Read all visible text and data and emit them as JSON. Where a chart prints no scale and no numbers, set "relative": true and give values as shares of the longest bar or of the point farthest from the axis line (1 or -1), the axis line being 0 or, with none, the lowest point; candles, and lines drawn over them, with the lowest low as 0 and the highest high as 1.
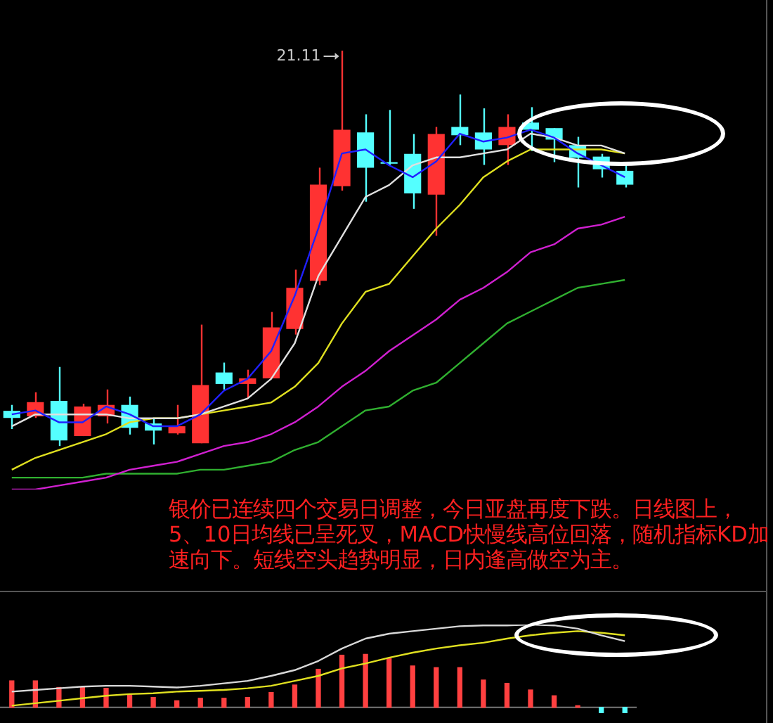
{
  "chart_data": [
    {
      "type": "candlestick",
      "relative": true,
      "categories": [
        null,
        null,
        null,
        null,
        null,
        null,
        null,
        null,
        null,
        null,
        null,
        null,
        null,
        null,
        null,
        null,
        null,
        null,
        null,
        null,
        null,
        null,
        null,
        null,
        null,
        null,
        null
      ],
      "ohlc": [
        [
          0.089,
          0.104,
          0.043,
          0.071
        ],
        [
          0.075,
          0.136,
          0.071,
          0.111
        ],
        [
          0.114,
          0.2,
          0,
          0.014
        ],
        [
          0.025,
          0.107,
          0.025,
          0.1
        ],
        [
          0.075,
          0.143,
          0.057,
          0.104
        ],
        [
          0.104,
          0.125,
          0.029,
          0.046
        ],
        [
          0.057,
          0.068,
          0.004,
          0.039
        ],
        [
          0.032,
          0.104,
          0.029,
          0.05
        ],
        [
          0.007,
          0.307,
          0.007,
          0.154
        ],
        [
          0.186,
          0.211,
          0.143,
          0.157
        ],
        [
          0.157,
          0.193,
          0.121,
          0.171
        ],
        [
          0.171,
          0.339,
          0.171,
          0.3
        ],
        [
          0.296,
          0.446,
          0.282,
          0.4
        ],
        [
          0.418,
          0.704,
          0.407,
          0.661
        ],
        [
          0.657,
          1,
          0.646,
          0.8
        ],
        [
          0.793,
          0.839,
          0.618,
          0.704
        ],
        [
          0.718,
          0.85,
          0.711,
          0.714
        ],
        [
          0.739,
          0.789,
          0.6,
          0.639
        ],
        [
          0.636,
          0.807,
          0.532,
          0.789
        ],
        [
          0.807,
          0.889,
          0.761,
          0.786
        ],
        [
          0.793,
          0.854,
          0.711,
          0.75
        ],
        [
          0.761,
          0.839,
          0.711,
          0.807
        ],
        [
          0.818,
          0.857,
          0.746,
          0.8
        ],
        [
          0.804,
          0.804,
          0.718,
          0.775
        ],
        [
          0.761,
          0.782,
          0.654,
          0.729
        ],
        [
          0.732,
          0.739,
          0.679,
          0.7
        ],
        [
          0.696,
          0.711,
          0.654,
          0.661
        ]
      ],
      "colors": [
        "#54ffff",
        "#ff3232",
        "#54ffff",
        "#ff3232",
        "#ff3232",
        "#54ffff",
        "#54ffff",
        "#ff3232",
        "#ff3232",
        "#54ffff",
        "#ff3232",
        "#ff3232",
        "#ff3232",
        "#ff3232",
        "#ff3232",
        "#54ffff",
        "#54ffff",
        "#54ffff",
        "#ff3232",
        "#54ffff",
        "#54ffff",
        "#ff3232",
        "#54ffff",
        "#54ffff",
        "#54ffff",
        "#54ffff",
        "#54ffff"
      ],
      "series": [
        {
          "type": "line",
          "color": "#2020ff",
          "values": [
            0.08,
            0.09,
            0.06,
            0.06,
            0.1,
            0.08,
            0.05,
            0.05,
            0.08,
            0.14,
            0.17,
            0.24,
            0.38,
            0.55,
            0.74,
            0.75,
            0.71,
            0.68,
            0.72,
            0.79,
            0.77,
            0.78,
            0.8,
            0.78,
            0.74,
            0.71,
            0.68
          ]
        },
        {
          "type": "line",
          "color": "#e0e0e0",
          "values": [
            0.05,
            0.08,
            0.08,
            0.08,
            0.08,
            0.07,
            0.07,
            0.07,
            0.08,
            0.1,
            0.12,
            0.17,
            0.26,
            0.43,
            0.53,
            0.63,
            0.66,
            0.71,
            0.73,
            0.73,
            0.74,
            0.75,
            0.79,
            0.78,
            0.76,
            0.76,
            0.74
          ]
        },
        {
          "type": "line",
          "color": "#e0e020",
          "values": [
            -0.06,
            -0.03,
            -0.01,
            0.01,
            0.03,
            0.06,
            0.07,
            0.07,
            0.08,
            0.09,
            0.1,
            0.11,
            0.15,
            0.21,
            0.31,
            0.39,
            0.41,
            0.48,
            0.55,
            0.61,
            0.68,
            0.72,
            0.75,
            0.75,
            0.75,
            0.75,
            0.74
          ]
        },
        {
          "type": "line",
          "color": "#d020d0",
          "values": [
            -0.11,
            -0.11,
            -0.1,
            -0.09,
            -0.08,
            -0.06,
            -0.05,
            -0.04,
            -0.02,
            0.0,
            0.01,
            0.03,
            0.06,
            0.1,
            0.15,
            0.19,
            0.24,
            0.28,
            0.32,
            0.37,
            0.4,
            0.44,
            0.49,
            0.51,
            0.55,
            0.56,
            0.58
          ]
        },
        {
          "type": "line",
          "color": "#30b030",
          "values": [
            -0.08,
            -0.08,
            -0.08,
            -0.08,
            -0.07,
            -0.07,
            -0.07,
            -0.07,
            -0.06,
            -0.06,
            -0.05,
            -0.04,
            -0.01,
            0.01,
            0.05,
            0.09,
            0.1,
            0.14,
            0.16,
            0.21,
            0.26,
            0.31,
            0.34,
            0.37,
            0.4,
            0.41,
            0.42
          ]
        }
      ],
      "annotations": [
        "21.11",
        "银价已连续四个交易日调整，今日亚盘再度下跌。日线图上，5、10日均线已呈死叉，MACD快慢线高位回落，随机指标KD加速向下。短线空头趋势明显，日内逢高做空为主。"
      ]
    },
    {
      "type": "bar",
      "relative": true,
      "categories": [
        null,
        null,
        null,
        null,
        null,
        null,
        null,
        null,
        null,
        null,
        null,
        null,
        null,
        null,
        null,
        null,
        null,
        null,
        null,
        null,
        null,
        null,
        null,
        null,
        null,
        null,
        null
      ],
      "series": [
        {
          "type": "bar",
          "colors": [
            "#ff4040",
            "#ff4040",
            "#ff4040",
            "#ff4040",
            "#ff4040",
            "#ff4040",
            "#ff4040",
            "#ff4040",
            "#ff4040",
            "#ff4040",
            "#ff4040",
            "#ff4040",
            "#ff4040",
            "#ff4040",
            "#ff4040",
            "#ff4040",
            "#ff4040",
            "#ff4040",
            "#ff4040",
            "#ff4040",
            "#ff4040",
            "#ff4040",
            "#ff4040",
            "#ff4040",
            "#ff4040",
            "#54ffff",
            "#54ffff"
          ],
          "values": [
            0.32,
            0.32,
            0.24,
            0.24,
            0.23,
            0.16,
            0.12,
            0.08,
            0.11,
            0.11,
            0.12,
            0.18,
            0.27,
            0.46,
            0.63,
            0.64,
            0.59,
            0.5,
            0.48,
            0.48,
            0.33,
            0.29,
            0.21,
            0.14,
            0.02,
            -0.07,
            -0.07
          ]
        },
        {
          "type": "line",
          "color": "#d8d8d8",
          "values": [
            0.19,
            0.21,
            0.23,
            0.25,
            0.26,
            0.26,
            0.25,
            0.24,
            0.26,
            0.29,
            0.32,
            0.38,
            0.45,
            0.56,
            0.71,
            0.83,
            0.89,
            0.92,
            0.95,
            0.98,
            0.99,
            0.99,
            1,
            0.99,
            0.95,
            0.87,
            0.8
          ]
        },
        {
          "type": "line",
          "color": "#e0e020",
          "values": [
            0.02,
            0.05,
            0.08,
            0.11,
            0.14,
            0.16,
            0.17,
            0.19,
            0.2,
            0.21,
            0.23,
            0.26,
            0.32,
            0.38,
            0.47,
            0.53,
            0.6,
            0.66,
            0.71,
            0.75,
            0.78,
            0.83,
            0.87,
            0.9,
            0.92,
            0.9,
            0.87
          ]
        }
      ]
    }
  ]
}
